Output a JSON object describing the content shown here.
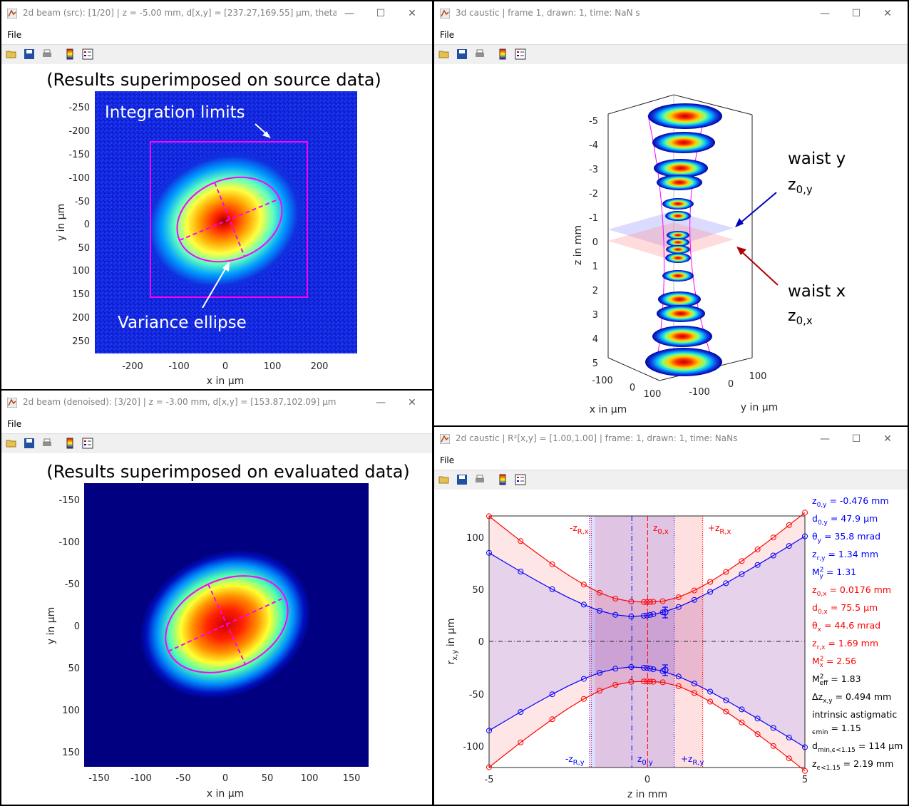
{
  "windows": {
    "w1": {
      "title": "2d beam (src): [1/20] | z = -5.00 mm, d[x,y] = [237.27,169.55] μm, theta = ...",
      "menu": "File",
      "heading": "(Results superimposed on source data)",
      "annot_limits": "Integration limits",
      "annot_ellipse": "Variance ellipse",
      "xlabel": "x in μm",
      "ylabel": "y in μm",
      "xticks": [
        "-200",
        "-100",
        "0",
        "100",
        "200"
      ],
      "yticks": [
        "-250",
        "-200",
        "-150",
        "-100",
        "-50",
        "0",
        "50",
        "100",
        "150",
        "200",
        "250"
      ]
    },
    "w2": {
      "title": "3d caustic | frame 1, drawn: 1, time: NaN s",
      "menu": "File",
      "zlabel": "z in mm",
      "xlabel": "x in μm",
      "ylabel": "y in μm",
      "zticks": [
        "-5",
        "-4",
        "-3",
        "-2",
        "-1",
        "0",
        "1",
        "2",
        "3",
        "4",
        "5"
      ],
      "xticks": [
        "-100",
        "0",
        "100"
      ],
      "yticks": [
        "100",
        "0",
        "-100"
      ],
      "waist_y": "waist y",
      "z0y_main": "z",
      "z0y_sub": "0,y",
      "waist_x": "waist x",
      "z0x_main": "z",
      "z0x_sub": "0,x"
    },
    "w3": {
      "title": "2d beam (denoised): [3/20] | z = -3.00 mm, d[x,y] = [153.87,102.09] μm, t...",
      "menu": "File",
      "heading": "(Results superimposed on evaluated data)",
      "xlabel": "x in μm",
      "ylabel": "y in μm",
      "xticks": [
        "-150",
        "-100",
        "-50",
        "0",
        "50",
        "100",
        "150"
      ],
      "yticks": [
        "-150",
        "-100",
        "-50",
        "0",
        "50",
        "100",
        "150"
      ]
    },
    "w4": {
      "title": "2d caustic | R²[x,y] = [1.00,1.00] | frame: 1, drawn: 1, time: NaNs",
      "menu": "File",
      "xlabel": "z in mm",
      "ylabel_main": "r",
      "ylabel_sub": "x,y",
      "ylabel_rest": " in μm",
      "xticks": [
        "-5",
        "0",
        "5"
      ],
      "yticks": [
        "100",
        "50",
        "0",
        "-50",
        "-100"
      ],
      "top_labels": {
        "mzrx_main": "-z",
        "mzrx_sub": "R,x",
        "z0x_main": "z",
        "z0x_sub": "0,x",
        "pzrx_main": "+z",
        "pzrx_sub": "R,x"
      },
      "bottom_labels": {
        "mzry_main": "-z",
        "mzry_sub": "R,y",
        "z0y_main": "z",
        "z0y_sub": "0,y",
        "pzry_main": "+z",
        "pzry_sub": "R,y"
      },
      "results": [
        {
          "main": "z",
          "sub": "0,y",
          "rest": " = -0.476 mm",
          "color": "#0000ff"
        },
        {
          "main": "d",
          "sub": "0,y",
          "rest": " = 47.9 μm",
          "color": "#0000ff"
        },
        {
          "main": "θ",
          "sub": "y",
          "rest": " = 35.8 mrad",
          "color": "#0000ff"
        },
        {
          "main": "z",
          "sub": "r,y",
          "rest": " = 1.34 mm",
          "color": "#0000ff"
        },
        {
          "main": "M",
          "sup": "2",
          "sub": "y",
          "rest": " = 1.31",
          "color": "#0000ff"
        },
        {
          "main": "z",
          "sub": "0,x",
          "rest": " = 0.0176 mm",
          "color": "#ff0000"
        },
        {
          "main": "d",
          "sub": "0,x",
          "rest": " = 75.5 μm",
          "color": "#ff0000"
        },
        {
          "main": "θ",
          "sub": "x",
          "rest": " = 44.6 mrad",
          "color": "#ff0000"
        },
        {
          "main": "z",
          "sub": "r,x",
          "rest": " = 1.69 mm",
          "color": "#ff0000"
        },
        {
          "main": "M",
          "sup": "2",
          "sub": "x",
          "rest": " = 2.56",
          "color": "#ff0000"
        },
        {
          "main": "M",
          "sup": "2",
          "sub": "eff",
          "rest": " = 1.83",
          "color": "#000000"
        },
        {
          "main": "Δz",
          "sub": "x,y",
          "rest": " = 0.494 mm",
          "color": "#000000"
        },
        {
          "main": "intrinsic astigmatic",
          "sub": "",
          "rest": "",
          "color": "#000000"
        },
        {
          "main": "",
          "sub": "ϵmin",
          "rest": " = 1.15",
          "color": "#000000"
        },
        {
          "main": "d",
          "sub": "min,ϵ<1.15",
          "rest": " = 114 μm",
          "color": "#000000"
        },
        {
          "main": "z",
          "sub": "ϵ<1.15",
          "rest": " = 2.19 mm",
          "color": "#000000"
        }
      ]
    }
  },
  "colors": {
    "blue": "#0000ff",
    "red": "#ff0000",
    "magenta": "#ff00ff",
    "bg_dark": "#000080"
  },
  "icons": [
    "matlab-figure-icon",
    "open-folder-icon",
    "save-icon",
    "print-icon",
    "colorbar-icon",
    "legend-icon",
    "minimize-icon",
    "maximize-icon",
    "close-icon"
  ],
  "chart_data": [
    {
      "type": "line",
      "title": "",
      "xlabel": "z in mm",
      "ylabel": "r x,y in μm",
      "xlim": [
        -5,
        5
      ],
      "ylim": [
        -120,
        120
      ],
      "grid": false,
      "x": [
        -5,
        -4.5,
        -4,
        -3.5,
        -3,
        -2.5,
        -2,
        -1.5,
        -1,
        -0.5,
        0,
        0.5,
        1,
        1.5,
        2,
        2.5,
        3,
        3.5,
        4,
        4.5,
        5
      ],
      "series": [
        {
          "name": "r x",
          "color": "#ff0000",
          "values": [
            119.7,
            107.8,
            96.1,
            84.9,
            74.0,
            63.8,
            54.6,
            46.8,
            41.1,
            38.3,
            37.8,
            38.7,
            42.4,
            48.9,
            57.1,
            66.6,
            77.0,
            88.1,
            99.5,
            111.3,
            123.2
          ]
        },
        {
          "name": "r y",
          "color": "#0000ff",
          "values": [
            84.8,
            75.8,
            67.0,
            58.4,
            50.1,
            42.3,
            35.4,
            29.6,
            25.7,
            24.1,
            25.0,
            28.1,
            33.2,
            39.9,
            47.6,
            55.8,
            64.5,
            73.3,
            82.3,
            91.4,
            100.6
          ]
        }
      ],
      "markers_x": [
        -5,
        -4,
        -3,
        -2,
        -1.5,
        -1,
        -0.5,
        -0.1,
        0,
        0.1,
        0.2,
        0.5,
        1,
        1.5,
        2,
        2.5,
        3,
        3.5,
        4,
        4.5,
        5
      ],
      "annotations": [
        "-z R,x",
        "z 0,x",
        "+z R,x",
        "-z R,y",
        "z 0,y",
        "+z R,y"
      ]
    }
  ]
}
